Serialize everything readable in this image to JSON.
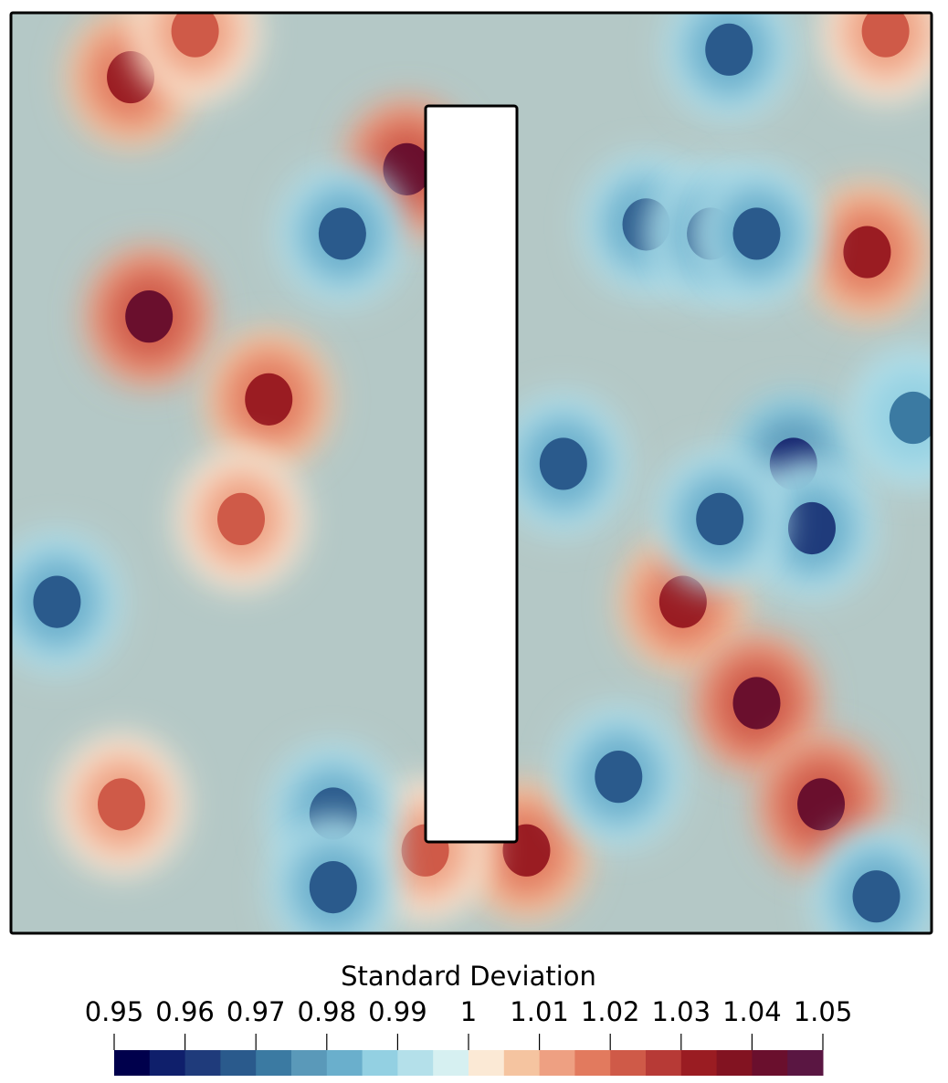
{
  "chart_data": {
    "type": "heatmap",
    "title": "",
    "colorbar": {
      "title": "Standard Deviation",
      "range": [
        0.95,
        1.05
      ],
      "tick_labels": [
        "0.95",
        "0.96",
        "0.97",
        "0.98",
        "0.99",
        "1",
        "1.01",
        "1.02",
        "1.03",
        "1.04",
        "1.05"
      ],
      "tick_values": [
        0.95,
        0.96,
        0.97,
        0.98,
        0.99,
        1.0,
        1.01,
        1.02,
        1.03,
        1.04,
        1.05
      ],
      "color_bands": [
        "#00004c",
        "#0f1f6b",
        "#1f3b7b",
        "#2a5a8c",
        "#3b7aa2",
        "#5a99b9",
        "#6aafcc",
        "#93d0e2",
        "#b4e0ea",
        "#d6f0f1",
        "#fbe9d5",
        "#f5c4a0",
        "#eea082",
        "#e27a5e",
        "#cf5a48",
        "#b73a36",
        "#9a1c22",
        "#821321",
        "#6a0f2d",
        "#5a1642"
      ]
    },
    "domain": {
      "hole": "rectangular cutout (white)"
    },
    "hot_spots": [
      {
        "x": 0.13,
        "y": 0.07,
        "level": 1.03
      },
      {
        "x": 0.43,
        "y": 0.17,
        "level": 1.04
      },
      {
        "x": 0.15,
        "y": 0.33,
        "level": 1.04
      },
      {
        "x": 0.28,
        "y": 0.42,
        "level": 1.03
      },
      {
        "x": 0.25,
        "y": 0.55,
        "level": 1.02
      },
      {
        "x": 0.12,
        "y": 0.86,
        "level": 1.02
      },
      {
        "x": 0.56,
        "y": 0.91,
        "level": 1.03
      },
      {
        "x": 0.45,
        "y": 0.91,
        "level": 1.02
      },
      {
        "x": 0.73,
        "y": 0.64,
        "level": 1.03
      },
      {
        "x": 0.81,
        "y": 0.75,
        "level": 1.04
      },
      {
        "x": 0.88,
        "y": 0.86,
        "level": 1.04
      },
      {
        "x": 0.93,
        "y": 0.26,
        "level": 1.03
      },
      {
        "x": 0.2,
        "y": 0.02,
        "level": 1.02
      },
      {
        "x": 0.95,
        "y": 0.02,
        "level": 1.02
      }
    ],
    "cold_spots": [
      {
        "x": 0.85,
        "y": 0.49,
        "level": 0.955
      },
      {
        "x": 0.87,
        "y": 0.56,
        "level": 0.96
      },
      {
        "x": 0.6,
        "y": 0.49,
        "level": 0.965
      },
      {
        "x": 0.05,
        "y": 0.64,
        "level": 0.965
      },
      {
        "x": 0.78,
        "y": 0.04,
        "level": 0.965
      },
      {
        "x": 0.36,
        "y": 0.24,
        "level": 0.965
      },
      {
        "x": 0.69,
        "y": 0.23,
        "level": 0.965
      },
      {
        "x": 0.76,
        "y": 0.24,
        "level": 0.965
      },
      {
        "x": 0.81,
        "y": 0.24,
        "level": 0.965
      },
      {
        "x": 0.35,
        "y": 0.87,
        "level": 0.965
      },
      {
        "x": 0.35,
        "y": 0.95,
        "level": 0.965
      },
      {
        "x": 0.66,
        "y": 0.83,
        "level": 0.965
      },
      {
        "x": 0.94,
        "y": 0.96,
        "level": 0.965
      },
      {
        "x": 0.98,
        "y": 0.44,
        "level": 0.97
      },
      {
        "x": 0.77,
        "y": 0.55,
        "level": 0.965
      }
    ]
  }
}
